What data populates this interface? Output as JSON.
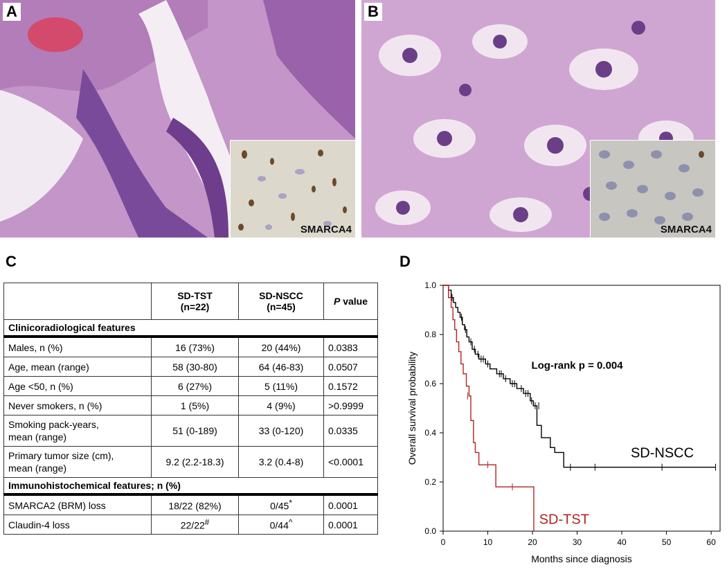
{
  "panels": {
    "A": {
      "letter": "A",
      "inset_label": "SMARCA4"
    },
    "B": {
      "letter": "B",
      "inset_label": "SMARCA4"
    },
    "C": {
      "letter": "C"
    },
    "D": {
      "letter": "D"
    }
  },
  "table": {
    "header": {
      "col1": "",
      "col2_line1": "SD-TST",
      "col2_line2": "(n=22)",
      "col3_line1": "SD-NSCC",
      "col3_line2": "(n=45)",
      "col4_p": "P",
      "col4_rest": " value"
    },
    "section1": "Clinicoradiological features",
    "rows1": [
      {
        "label": "Males, n (%)",
        "tst": "16 (73%)",
        "nscc": "20 (44%)",
        "p": "0.0383"
      },
      {
        "label": "Age, mean (range)",
        "tst": "58 (30-80)",
        "nscc": "64 (46-83)",
        "p": "0.0507"
      },
      {
        "label": "Age <50, n (%)",
        "tst": "6 (27%)",
        "nscc": "5 (11%)",
        "p": "0.1572"
      },
      {
        "label": "Never smokers, n (%)",
        "tst": "1 (5%)",
        "nscc": "4 (9%)",
        "p": ">0.9999"
      }
    ],
    "rows2": [
      {
        "label1": "Smoking pack-years,",
        "label2": "mean (range)",
        "tst": "51 (0-189)",
        "nscc": "33 (0-120)",
        "p": "0.0335"
      },
      {
        "label1": "Primary tumor size (cm),",
        "label2": "mean (range)",
        "tst": "9.2 (2.2-18.3)",
        "nscc": "3.2 (0.4-8)",
        "p": "<0.0001"
      }
    ],
    "section2": "Immunohistochemical features; n (%)",
    "rows3": [
      {
        "label": "SMARCA2 (BRM) loss",
        "tst": "18/22 (82%)",
        "tst_sup": "",
        "nscc": "0/45",
        "nscc_sup": "*",
        "p": "0.0001"
      },
      {
        "label": "Claudin-4 loss",
        "tst": "22/22",
        "tst_sup": "#",
        "nscc": "0/44",
        "nscc_sup": "^",
        "p": "0.0001"
      }
    ]
  },
  "chart_data": {
    "type": "line",
    "ylabel": "Overall survival probability",
    "xlabel": "Months since diagnosis",
    "xlim": [
      0,
      62
    ],
    "ylim": [
      0,
      1
    ],
    "xticks": [
      0,
      10,
      20,
      30,
      40,
      50,
      60
    ],
    "yticks": [
      "0.0",
      "0.2",
      "0.4",
      "0.6",
      "0.8",
      "1.0"
    ],
    "annotation": "Log-rank p = 0.004",
    "series": [
      {
        "name": "SD-NSCC",
        "color": "#000000",
        "steps": [
          [
            0,
            1.0
          ],
          [
            1.2,
            0.98
          ],
          [
            1.8,
            0.95
          ],
          [
            2.3,
            0.93
          ],
          [
            2.8,
            0.91
          ],
          [
            3.3,
            0.89
          ],
          [
            3.8,
            0.87
          ],
          [
            4.3,
            0.84
          ],
          [
            4.8,
            0.82
          ],
          [
            5.3,
            0.79
          ],
          [
            5.8,
            0.77
          ],
          [
            6.5,
            0.74
          ],
          [
            7.2,
            0.72
          ],
          [
            8.0,
            0.7
          ],
          [
            9.5,
            0.68
          ],
          [
            10.5,
            0.66
          ],
          [
            12.0,
            0.64
          ],
          [
            13.5,
            0.62
          ],
          [
            15.0,
            0.6
          ],
          [
            16.5,
            0.58
          ],
          [
            18.0,
            0.56
          ],
          [
            19.5,
            0.53
          ],
          [
            20.2,
            0.51
          ],
          [
            21.0,
            0.43
          ],
          [
            22.0,
            0.38
          ],
          [
            24.0,
            0.34
          ],
          [
            25.0,
            0.32
          ],
          [
            27.0,
            0.26
          ],
          [
            61.0,
            0.26
          ]
        ],
        "censors": [
          [
            2.0,
            0.95
          ],
          [
            4.1,
            0.87
          ],
          [
            5.0,
            0.82
          ],
          [
            6.2,
            0.77
          ],
          [
            7.0,
            0.74
          ],
          [
            7.8,
            0.72
          ],
          [
            8.5,
            0.7
          ],
          [
            9.0,
            0.7
          ],
          [
            10.0,
            0.68
          ],
          [
            12.6,
            0.64
          ],
          [
            13.0,
            0.64
          ],
          [
            14.0,
            0.62
          ],
          [
            15.5,
            0.6
          ],
          [
            16.0,
            0.6
          ],
          [
            17.5,
            0.58
          ],
          [
            18.5,
            0.56
          ],
          [
            19.0,
            0.56
          ],
          [
            19.8,
            0.53
          ],
          [
            20.6,
            0.51
          ],
          [
            21.4,
            0.51
          ],
          [
            28.5,
            0.26
          ],
          [
            34.0,
            0.26
          ],
          [
            49.0,
            0.26
          ],
          [
            61.0,
            0.26
          ]
        ],
        "label_pos": "right, above line"
      },
      {
        "name": "SD-TST",
        "color": "#b22222",
        "steps": [
          [
            0,
            1.0
          ],
          [
            1.2,
            0.95
          ],
          [
            1.8,
            0.91
          ],
          [
            2.2,
            0.86
          ],
          [
            2.6,
            0.82
          ],
          [
            3.0,
            0.77
          ],
          [
            3.5,
            0.73
          ],
          [
            4.0,
            0.68
          ],
          [
            4.5,
            0.64
          ],
          [
            5.2,
            0.59
          ],
          [
            5.8,
            0.55
          ],
          [
            6.2,
            0.45
          ],
          [
            6.8,
            0.36
          ],
          [
            7.2,
            0.32
          ],
          [
            8.0,
            0.27
          ],
          [
            11.8,
            0.18
          ],
          [
            20.3,
            0.0
          ]
        ],
        "censors": [
          [
            5.5,
            0.55
          ],
          [
            10.0,
            0.27
          ],
          [
            15.5,
            0.18
          ]
        ],
        "label_pos": "right end, below line"
      }
    ]
  }
}
